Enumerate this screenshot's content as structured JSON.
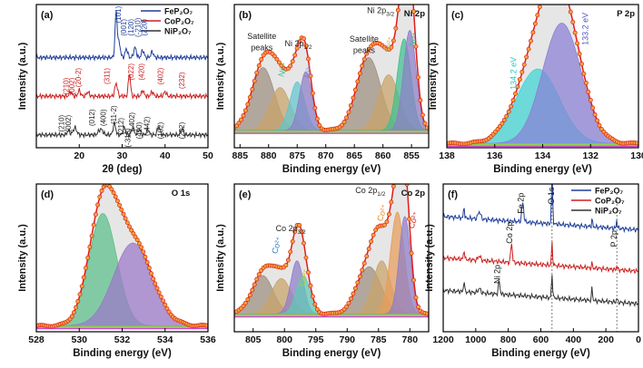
{
  "chart_data": [
    {
      "id": "a",
      "panel_label": "(a)",
      "type": "line",
      "xlabel": "2θ (deg)",
      "ylabel": "Intensity (a.u.)",
      "xlim": [
        10,
        50
      ],
      "ylim": [
        0,
        10
      ],
      "xticks": [
        20,
        30,
        40,
        50
      ],
      "legend": [
        {
          "name": "FeP₂O₇",
          "color": "#1f3f99"
        },
        {
          "name": "CoP₂O₇",
          "color": "#cc2020"
        },
        {
          "name": "NiP₂O₇",
          "color": "#333333"
        }
      ],
      "series": [
        {
          "name": "FeP₂O₇",
          "color": "#1f3f99",
          "offset": 6.3,
          "peaks": [
            [
              28.6,
              3.2,
              0.25
            ],
            [
              29.3,
              1.0,
              0.3
            ],
            [
              31.0,
              0.6,
              0.3
            ],
            [
              33.0,
              0.7,
              0.3
            ],
            [
              34.8,
              0.5,
              0.3
            ],
            [
              37.0,
              0.4,
              0.3
            ]
          ]
        },
        {
          "name": "CoP₂O₇",
          "color": "#cc2020",
          "offset": 3.6,
          "peaks": [
            [
              18.0,
              0.3,
              0.3
            ],
            [
              20.0,
              0.4,
              0.3
            ],
            [
              22.0,
              0.3,
              0.3
            ],
            [
              28.6,
              0.9,
              0.3
            ],
            [
              31.7,
              1.6,
              0.25
            ],
            [
              34.8,
              0.4,
              0.3
            ],
            [
              37.0,
              0.3,
              0.3
            ],
            [
              40.0,
              0.3,
              0.3
            ]
          ]
        },
        {
          "name": "NiP₂O₇",
          "color": "#333333",
          "offset": 0.9,
          "peaks": [
            [
              17.5,
              0.3,
              0.3
            ],
            [
              19.0,
              0.5,
              0.4
            ],
            [
              25.0,
              0.4,
              0.5
            ],
            [
              28.2,
              0.8,
              0.3
            ],
            [
              30.5,
              0.5,
              0.3
            ],
            [
              32.5,
              0.5,
              0.3
            ],
            [
              34.0,
              0.4,
              0.3
            ],
            [
              36.0,
              0.4,
              0.3
            ],
            [
              38.5,
              0.6,
              0.3
            ],
            [
              44.0,
              0.4,
              0.3
            ]
          ]
        }
      ],
      "annotations": [
        {
          "text": "(101)",
          "x": 29.7,
          "y": 9.3,
          "color": "#1f3f99"
        },
        {
          "text": "(001)",
          "x": 31.0,
          "y": 8.4,
          "color": "#1f3f99"
        },
        {
          "text": "(120)",
          "x": 32.7,
          "y": 8.4,
          "color": "#1f3f99"
        },
        {
          "text": "(-210)",
          "x": 34.2,
          "y": 8.4,
          "color": "#1f3f99"
        },
        {
          "text": "(220)",
          "x": 35.7,
          "y": 8.4,
          "color": "#1f3f99"
        },
        {
          "text": "(210)",
          "x": 17.5,
          "y": 4.3,
          "color": "#cc2020"
        },
        {
          "text": "(002)",
          "x": 18.9,
          "y": 4.3,
          "color": "#cc2020"
        },
        {
          "text": "(20-2)",
          "x": 20.4,
          "y": 4.9,
          "color": "#cc2020"
        },
        {
          "text": "(311)",
          "x": 27.0,
          "y": 5.0,
          "color": "#cc2020"
        },
        {
          "text": "(022)",
          "x": 32.6,
          "y": 5.3,
          "color": "#cc2020"
        },
        {
          "text": "(420)",
          "x": 35.1,
          "y": 5.3,
          "color": "#cc2020"
        },
        {
          "text": "(402)",
          "x": 39.5,
          "y": 5.0,
          "color": "#cc2020"
        },
        {
          "text": "(232)",
          "x": 44.5,
          "y": 4.7,
          "color": "#cc2020"
        },
        {
          "text": "(210)",
          "x": 16.5,
          "y": 1.7,
          "color": "#222222"
        },
        {
          "text": "(002)",
          "x": 18.0,
          "y": 1.7,
          "color": "#222222"
        },
        {
          "text": "(012)",
          "x": 23.5,
          "y": 2.1,
          "color": "#222222"
        },
        {
          "text": "(400)",
          "x": 26.2,
          "y": 2.1,
          "color": "#222222"
        },
        {
          "text": "(11-2)",
          "x": 28.6,
          "y": 2.3,
          "color": "#222222"
        },
        {
          "text": "(212)",
          "x": 30.3,
          "y": 1.5,
          "color": "#222222"
        },
        {
          "text": "(-313)",
          "x": 31.9,
          "y": 0.7,
          "color": "#222222"
        },
        {
          "text": "(-402)",
          "x": 32.9,
          "y": 1.8,
          "color": "#222222"
        },
        {
          "text": "(420)",
          "x": 34.6,
          "y": 1.2,
          "color": "#222222"
        },
        {
          "text": "(-442)",
          "x": 36.3,
          "y": 1.5,
          "color": "#222222"
        },
        {
          "text": "(102)",
          "x": 39.5,
          "y": 1.2,
          "color": "#222222"
        },
        {
          "text": "(232)",
          "x": 44.5,
          "y": 1.2,
          "color": "#222222"
        }
      ]
    },
    {
      "id": "b",
      "panel_label": "(b)",
      "type": "line",
      "title": "Ni 2p",
      "xlabel": "Binding energy (eV)",
      "ylabel": "Intensity (a.u.)",
      "xlim": [
        886,
        852
      ],
      "ylim": [
        0,
        10
      ],
      "xticks": [
        885,
        880,
        875,
        870,
        865,
        860,
        855
      ],
      "baseline": 1.2,
      "components": [
        {
          "center": 881.0,
          "height": 4.4,
          "width": 2.0,
          "fill": "#9e8f80"
        },
        {
          "center": 878.0,
          "height": 3.0,
          "width": 1.8,
          "fill": "#c9a36a"
        },
        {
          "center": 875.0,
          "height": 3.4,
          "width": 1.3,
          "fill": "#62c6ce"
        },
        {
          "center": 873.5,
          "height": 4.1,
          "width": 1.1,
          "fill": "#8d7ec9"
        },
        {
          "center": 862.5,
          "height": 5.1,
          "width": 2.1,
          "fill": "#9e8f80"
        },
        {
          "center": 859.0,
          "height": 3.9,
          "width": 1.8,
          "fill": "#c9a36a"
        },
        {
          "center": 856.3,
          "height": 6.4,
          "width": 1.2,
          "fill": "#3fbf8f"
        },
        {
          "center": 855.3,
          "height": 7.0,
          "width": 1.1,
          "fill": "#8d7ec9"
        }
      ],
      "annotations": [
        {
          "text": "Satellite",
          "x": 881.2,
          "y": 7.6,
          "color": "#222222"
        },
        {
          "text": "peaks",
          "x": 881.2,
          "y": 6.8,
          "color": "#222222"
        },
        {
          "text": "Ni 2p",
          "x": 874.8,
          "y": 7.1,
          "sub": "1/2",
          "color": "#222222"
        },
        {
          "text": "Satellite",
          "x": 863.3,
          "y": 7.4,
          "color": "#222222"
        },
        {
          "text": "peaks",
          "x": 863.3,
          "y": 6.6,
          "color": "#222222"
        },
        {
          "text": "Ni 2p",
          "x": 860.4,
          "y": 9.4,
          "sub": "3/2",
          "color": "#222222"
        },
        {
          "text": "Ni²⁺",
          "x": 877.0,
          "y": 5.4,
          "color": "#3fbf8f",
          "rotate": -72
        },
        {
          "text": "Ni³⁺",
          "x": 872.5,
          "y": 5.3,
          "color": "#8d7ec9",
          "rotate": -72
        },
        {
          "text": "Ni²⁺",
          "x": 858.5,
          "y": 7.2,
          "color": "#c9a36a",
          "rotate": -72
        },
        {
          "text": "Ni³⁺",
          "x": 854.2,
          "y": 7.5,
          "color": "#3fbf8f",
          "rotate": -72
        }
      ]
    },
    {
      "id": "c",
      "panel_label": "(c)",
      "type": "line",
      "title": "P 2p",
      "xlabel": "Binding energy (eV)",
      "ylabel": "Intensity (a.u.)",
      "xlim": [
        138,
        130
      ],
      "ylim": [
        0,
        10
      ],
      "xticks": [
        138,
        136,
        134,
        132,
        130
      ],
      "baseline": 0.3,
      "components": [
        {
          "center": 134.2,
          "height": 5.2,
          "width": 0.9,
          "fill": "#3fd4d4"
        },
        {
          "center": 133.2,
          "height": 8.4,
          "width": 0.8,
          "fill": "#8a7fd6"
        }
      ],
      "annotations": [
        {
          "text": "134.2 eV",
          "x": 135.1,
          "y": 5.2,
          "color": "#23c9c9",
          "rotate": -90
        },
        {
          "text": "133.2 eV",
          "x": 132.1,
          "y": 8.3,
          "color": "#4a58c8",
          "rotate": -90
        }
      ]
    },
    {
      "id": "d",
      "panel_label": "(d)",
      "type": "line",
      "title": "O 1s",
      "xlabel": "Binding energy (eV)",
      "ylabel": "Intensity (a.u.)",
      "xlim": [
        528,
        536
      ],
      "ylim": [
        0,
        10
      ],
      "xticks": [
        528,
        530,
        532,
        534,
        536
      ],
      "baseline": 0.4,
      "components": [
        {
          "center": 531.1,
          "height": 7.6,
          "width": 0.65,
          "fill": "#5bbf8a"
        },
        {
          "center": 532.5,
          "height": 5.6,
          "width": 0.9,
          "fill": "#9b79c9"
        }
      ],
      "annotations": []
    },
    {
      "id": "e",
      "panel_label": "(e)",
      "type": "line",
      "title": "Co 2p",
      "xlabel": "Binding energy (eV)",
      "ylabel": "Intensity (a.u.)",
      "xlim": [
        808,
        777
      ],
      "ylim": [
        0,
        10
      ],
      "xticks": [
        805,
        800,
        795,
        790,
        785,
        780
      ],
      "baseline": 1.2,
      "components": [
        {
          "center": 803.5,
          "height": 2.6,
          "width": 1.7,
          "fill": "#9e8f80"
        },
        {
          "center": 800.5,
          "height": 2.4,
          "width": 1.6,
          "fill": "#c9a36a"
        },
        {
          "center": 798.0,
          "height": 3.6,
          "width": 1.0,
          "fill": "#8d7ec9"
        },
        {
          "center": 797.0,
          "height": 2.6,
          "width": 1.1,
          "fill": "#5fc9b7"
        },
        {
          "center": 786.5,
          "height": 3.2,
          "width": 1.9,
          "fill": "#9e8f80"
        },
        {
          "center": 784.5,
          "height": 3.6,
          "width": 1.4,
          "fill": "#c9a36a"
        },
        {
          "center": 782.0,
          "height": 6.9,
          "width": 1.1,
          "fill": "#e89c5a"
        },
        {
          "center": 780.8,
          "height": 6.6,
          "width": 0.9,
          "fill": "#8d7ec9"
        }
      ],
      "annotations": [
        {
          "text": "Co 2p",
          "x": 799.0,
          "y": 6.8,
          "sub": "3/2",
          "color": "#222222"
        },
        {
          "text": "Co 2p",
          "x": 786.3,
          "y": 9.4,
          "sub": "1/2",
          "color": "#222222"
        },
        {
          "text": "Co²⁺",
          "x": 800.8,
          "y": 5.8,
          "color": "#2f7dd1",
          "rotate": -72
        },
        {
          "text": "Co³⁺",
          "x": 796.5,
          "y": 3.6,
          "color": "#c9c21a",
          "rotate": -72
        },
        {
          "text": "Co²⁺",
          "x": 784.0,
          "y": 8.0,
          "color": "#e88a2a",
          "rotate": -72
        },
        {
          "text": "Co²⁺",
          "x": 779.0,
          "y": 7.5,
          "color": "#cc2020",
          "rotate": -72
        }
      ]
    },
    {
      "id": "f",
      "panel_label": "(f)",
      "type": "line",
      "xlabel": "Binding energy (eV)",
      "ylabel": "Intensity (a.u.)",
      "xlim": [
        1200,
        0
      ],
      "ylim": [
        0,
        10
      ],
      "xticks": [
        1200,
        1000,
        800,
        600,
        400,
        200,
        0
      ],
      "legend": [
        {
          "name": "FeP₂O₇",
          "color": "#1f3f99"
        },
        {
          "name": "CoP₂O₇",
          "color": "#cc2020"
        },
        {
          "name": "NiP₂O₇",
          "color": "#333333"
        }
      ],
      "series": [
        {
          "name": "FeP₂O₇",
          "color": "#1f3f99",
          "offset": 6.9,
          "peaks": [
            [
              1072,
              0.8,
              3
            ],
            [
              978,
              0.5,
              8
            ],
            [
              711,
              1.3,
              6
            ],
            [
              531,
              3.9,
              3.5
            ],
            [
              285,
              0.5,
              3
            ],
            [
              133,
              0.6,
              3
            ]
          ]
        },
        {
          "name": "CoP₂O₇",
          "color": "#cc2020",
          "offset": 4.1,
          "peaks": [
            [
              1072,
              0.7,
              3
            ],
            [
              978,
              0.3,
              8
            ],
            [
              780,
              1.3,
              5
            ],
            [
              531,
              1.5,
              3.5
            ],
            [
              285,
              0.3,
              3
            ],
            [
              133,
              0.3,
              3
            ]
          ]
        },
        {
          "name": "NiP₂O₇",
          "color": "#333333",
          "offset": 1.9,
          "peaks": [
            [
              1072,
              0.8,
              3
            ],
            [
              978,
              0.3,
              8
            ],
            [
              856,
              0.9,
              5
            ],
            [
              531,
              1.6,
              3.5
            ],
            [
              285,
              0.9,
              3
            ],
            [
              133,
              0.3,
              3
            ]
          ]
        }
      ],
      "markers": [
        531,
        133
      ],
      "annotations": [
        {
          "text": "O 1s",
          "x": 520,
          "y": 9.2,
          "color": "#111111",
          "rotate": -90
        },
        {
          "text": "Fe 2p",
          "x": 705,
          "y": 8.7,
          "color": "#111111",
          "rotate": -90
        },
        {
          "text": "Co 2p",
          "x": 775,
          "y": 6.7,
          "color": "#111111",
          "rotate": -90
        },
        {
          "text": "Ni 2p",
          "x": 850,
          "y": 3.9,
          "color": "#111111",
          "rotate": -90
        },
        {
          "text": "P 2p",
          "x": 133,
          "y": 6.3,
          "color": "#111111",
          "rotate": -90
        }
      ]
    }
  ]
}
